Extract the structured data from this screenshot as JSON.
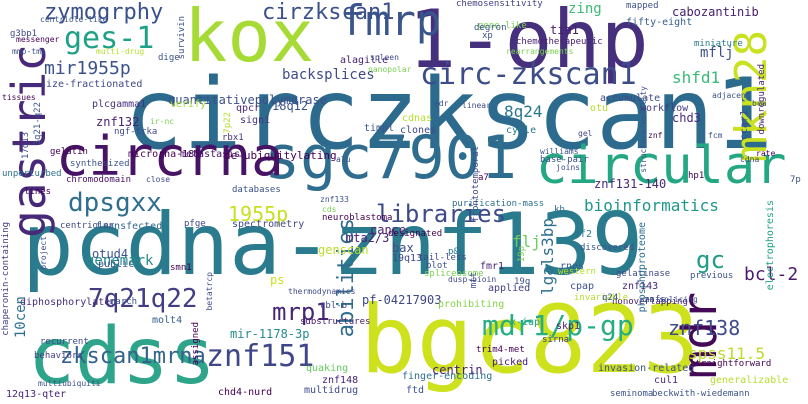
{
  "words": [
    {
      "t": "pcdna-znf139",
      "c": "#2a7b8e"
    },
    {
      "t": "circzkscan1",
      "c": "#2c6b8e"
    },
    {
      "t": "bgc823",
      "c": "#cde11d"
    },
    {
      "t": "kox",
      "c": "#a6db35"
    },
    {
      "t": "1-ohp",
      "c": "#46307d"
    },
    {
      "t": "cdss",
      "c": "#2ea48a"
    },
    {
      "t": "sgc7901",
      "c": "#2f6d8e"
    },
    {
      "t": "circular",
      "c": "#24a883"
    },
    {
      "t": "circrna",
      "c": "#471365"
    },
    {
      "t": "gastric",
      "c": "#482878"
    },
    {
      "t": "mkn28",
      "c": "#cae11f"
    },
    {
      "t": "fmrp",
      "c": "#3a548c"
    },
    {
      "t": "mdr",
      "c": "#440a57"
    },
    {
      "t": "circ-zkscan1",
      "c": "#3d4d8a"
    },
    {
      "t": "libraries",
      "c": "#3e4a89"
    },
    {
      "t": "dpsgxx",
      "c": "#2e6e8e"
    },
    {
      "t": "zymogrphy",
      "c": "#3b518b"
    },
    {
      "t": "cirzkscan1",
      "c": "#3b518b"
    },
    {
      "t": "ges-1",
      "c": "#1fa187"
    },
    {
      "t": "zkscan1mrna",
      "c": "#33628d"
    },
    {
      "t": "znf151",
      "c": "#3f4788"
    },
    {
      "t": "mdr1/p-gp",
      "c": "#26ad81"
    },
    {
      "t": "7q21q22",
      "c": "#433d84"
    },
    {
      "t": "mrp1",
      "c": "#482576"
    },
    {
      "t": "abilities",
      "c": "#2f6c8e"
    },
    {
      "t": "1955p",
      "c": "#c8e020"
    },
    {
      "t": "mir1955p",
      "c": "#3b528b"
    },
    {
      "t": "backsplices",
      "c": "#3e4b8a"
    },
    {
      "t": "quantitativepolymerase",
      "c": "#3c4f8a"
    },
    {
      "t": "bioinformatics",
      "c": "#1f988b"
    },
    {
      "t": "znf131-140",
      "c": "#482878"
    },
    {
      "t": "znf138",
      "c": "#3e4c8a"
    },
    {
      "t": "spss11.5",
      "c": "#bade28"
    },
    {
      "t": "bcl-2",
      "c": "#481a6c"
    },
    {
      "t": "gc",
      "c": "#1e9c89"
    },
    {
      "t": "mflj",
      "c": "#3b528b"
    },
    {
      "t": "shfd1",
      "c": "#3aba76"
    },
    {
      "t": "8q24",
      "c": "#2a788e"
    },
    {
      "t": "chd3",
      "c": "#472d7b"
    },
    {
      "t": "lgals3bp",
      "c": "#2d708e"
    },
    {
      "t": "flj",
      "c": "#6ccd5a"
    },
    {
      "t": "genemark",
      "c": "#228c8d"
    },
    {
      "t": "10cen",
      "c": "#2c718e"
    },
    {
      "t": "znf132",
      "c": "#482374"
    },
    {
      "t": "18q12",
      "c": "#3a538b"
    },
    {
      "t": "mta2/3",
      "c": "#482475"
    },
    {
      "t": "otud4",
      "c": "#3a548c"
    },
    {
      "t": "genscan",
      "c": "#bade28"
    },
    {
      "t": "bax",
      "c": "#3d4e8a"
    },
    {
      "t": "ps",
      "c": "#cde11d"
    },
    {
      "t": "mir-1178-3p",
      "c": "#238a8d"
    },
    {
      "t": "pf-04217903",
      "c": "#3f4788"
    },
    {
      "t": "centrin",
      "c": "#482071"
    },
    {
      "t": "cabozantinib",
      "c": "#482071"
    },
    {
      "t": "zing",
      "c": "#3aba76"
    },
    {
      "t": "tia1",
      "c": "#481c6e"
    },
    {
      "t": "cance",
      "c": "#482173"
    },
    {
      "t": "gene-like",
      "c": "#7ad151"
    },
    {
      "t": "de-ubiquitylating",
      "c": "#440154"
    },
    {
      "t": "alagille",
      "c": "#482173"
    },
    {
      "t": "chemosensitivity",
      "c": "#433e85"
    },
    {
      "t": "fifty-eight",
      "c": "#355f8d"
    },
    {
      "t": "workflow",
      "c": "#443983"
    },
    {
      "t": "accumulate",
      "c": "#3e4989"
    },
    {
      "t": "diphosphorylated",
      "c": "#472f7d"
    },
    {
      "t": "prohibiting",
      "c": "#84d44b"
    },
    {
      "t": "finger-encoding",
      "c": "#2e6f8e"
    },
    {
      "t": "picked",
      "c": "#481769"
    },
    {
      "t": "applied",
      "c": "#433e85"
    },
    {
      "t": "quaking",
      "c": "#65cb5e"
    },
    {
      "t": "invasion-related",
      "c": "#3b528b"
    },
    {
      "t": "generalizable",
      "c": "#b5de2b"
    },
    {
      "t": "multidrug",
      "c": "#3e4a89"
    },
    {
      "t": "rnas",
      "c": "#355f8d"
    },
    {
      "t": "sf2",
      "c": "#2a788e"
    },
    {
      "t": "fmr1",
      "c": "#482576"
    },
    {
      "t": "19q13",
      "c": "#3e4989"
    },
    {
      "t": "znf148",
      "c": "#482374"
    },
    {
      "t": "molt4",
      "c": "#355f8d"
    },
    {
      "t": "public",
      "c": "#3b528b"
    },
    {
      "t": "microrna-185",
      "c": "#440154"
    },
    {
      "t": "metastasis",
      "c": "#471164"
    },
    {
      "t": "transfected",
      "c": "#31688e"
    },
    {
      "t": "spectrometry",
      "c": "#3e4a89"
    },
    {
      "t": "size-fractionated",
      "c": "#3e4989"
    },
    {
      "t": "plcgamma1",
      "c": "#46317e"
    },
    {
      "t": "12q13-qter",
      "c": "#482576"
    },
    {
      "t": "chd4-nurd",
      "c": "#440154"
    },
    {
      "t": "trim4-met",
      "c": "#440154"
    },
    {
      "t": "neuroblastoma",
      "c": "#440154"
    },
    {
      "t": "purification-mass",
      "c": "#2d708e"
    },
    {
      "t": "straightforward",
      "c": "#440154"
    },
    {
      "t": "nonoverlapping",
      "c": "#482173"
    },
    {
      "t": "chaperonin-containing",
      "c": "#433e85"
    },
    {
      "t": "substructures",
      "c": "#481a6c"
    },
    {
      "t": "centriolar",
      "c": "#3e4989"
    },
    {
      "t": "chromodomain",
      "c": "#471063"
    },
    {
      "t": "survivin",
      "c": "#3b528b"
    },
    {
      "t": "cdnas",
      "c": "#b5de2b"
    },
    {
      "t": "clones",
      "c": "#3e4989"
    },
    {
      "t": "timpl",
      "c": "#3a548c"
    },
    {
      "t": "otu",
      "c": "#b5de2b"
    },
    {
      "t": "cycle",
      "c": "#2a788e"
    },
    {
      "t": "ccar1",
      "c": "#3e4a89"
    },
    {
      "t": "verify",
      "c": "#a0da39"
    },
    {
      "t": "signi",
      "c": "#46327e"
    },
    {
      "t": "qpcr",
      "c": "#482475"
    },
    {
      "t": "rbx1",
      "c": "#46327e"
    },
    {
      "t": "7p22",
      "c": "#b5de2b"
    },
    {
      "t": "3q21-q22",
      "c": "#3b528b"
    },
    {
      "t": "mapped",
      "c": "#3b528b"
    },
    {
      "t": "xp",
      "c": "#3b528b"
    },
    {
      "t": "chemotherapeutic",
      "c": "#482071"
    },
    {
      "t": "miniature",
      "c": "#2a788e"
    },
    {
      "t": "downregulated",
      "c": "#482878"
    },
    {
      "t": "cpap",
      "c": "#3b528b"
    },
    {
      "t": "invariable",
      "c": "#b5de2b"
    },
    {
      "t": "skp1",
      "c": "#481f70"
    },
    {
      "t": "x-iap",
      "c": "#1fa187"
    },
    {
      "t": "sirna",
      "c": "#433e85"
    },
    {
      "t": "cul1",
      "c": "#482878"
    },
    {
      "t": "ftd",
      "c": "#3b528b"
    },
    {
      "t": "znf143",
      "c": "#482576"
    },
    {
      "t": "znfs",
      "c": "#3e4a89"
    },
    {
      "t": "q24",
      "c": "#3b528b"
    },
    {
      "t": "p&p",
      "c": "#2c718e"
    },
    {
      "t": "tail-less",
      "c": "#3e4989"
    },
    {
      "t": "designated",
      "c": "#440154"
    },
    {
      "t": "19p",
      "c": "#7ad151"
    },
    {
      "t": "19q",
      "c": "#3b528b"
    },
    {
      "t": "discovered",
      "c": "#3b528b"
    },
    {
      "t": "gelatinase",
      "c": "#3e4a89"
    },
    {
      "t": "previous",
      "c": "#3b528b"
    },
    {
      "t": "phosphoproteome",
      "c": "#2c718e"
    },
    {
      "t": "electrophoresis",
      "c": "#1fa187"
    },
    {
      "t": "recurrent",
      "c": "#3e4a89"
    },
    {
      "t": "behaviors",
      "c": "#433e85"
    },
    {
      "t": "assigned",
      "c": "#440154"
    },
    {
      "t": "seminoma",
      "c": "#3b528b"
    },
    {
      "t": "beckwith-wiedemann",
      "c": "#3b528b"
    },
    {
      "t": "databases",
      "c": "#3b528b"
    },
    {
      "t": "pfge",
      "c": "#3e4989"
    },
    {
      "t": "smn1",
      "c": "#440154"
    },
    {
      "t": "march",
      "c": "#3b528b"
    },
    {
      "t": "lines",
      "c": "#440154"
    },
    {
      "t": "unperturbed",
      "c": "#2c718e"
    },
    {
      "t": "thermodynamics",
      "c": "#3e4a89"
    },
    {
      "t": "cbl-b",
      "c": "#3e4a89"
    },
    {
      "t": "spliceosome",
      "c": "#7ad151"
    },
    {
      "t": "blot",
      "c": "#3b528b"
    },
    {
      "t": "mtt",
      "c": "#3e4989"
    },
    {
      "t": "western",
      "c": "#b5de2b"
    },
    {
      "t": "rna-splicing",
      "c": "#3b528b"
    },
    {
      "t": "frontotemporal",
      "c": "#3e4a89"
    },
    {
      "t": "synthesized",
      "c": "#3b528b"
    },
    {
      "t": "gelatin",
      "c": "#440154"
    },
    {
      "t": "17q13",
      "c": "#3e4989"
    },
    {
      "t": "ngf-trka",
      "c": "#3e4a89"
    },
    {
      "t": "base-pair",
      "c": "#3b528b"
    },
    {
      "t": "kb",
      "c": "#2c718e"
    },
    {
      "t": "a7",
      "c": "#440154"
    },
    {
      "t": "hp1",
      "c": "#440154"
    },
    {
      "t": "7p",
      "c": "#3b528b"
    },
    {
      "t": "mmp-tmp",
      "c": "#3b528b"
    },
    {
      "t": "messenger",
      "c": "#440154"
    },
    {
      "t": "g3bp1",
      "c": "#3e4989"
    },
    {
      "t": "centriole-like",
      "c": "#3b528b"
    },
    {
      "t": "multi-drug",
      "c": "#b5de2b"
    },
    {
      "t": "dige",
      "c": "#3b528b"
    },
    {
      "t": "degron",
      "c": "#3b528b"
    },
    {
      "t": "spleen",
      "c": "#3e4a89"
    },
    {
      "t": "rearrangements",
      "c": "#7ad151"
    },
    {
      "t": "tissues",
      "c": "#440154"
    },
    {
      "t": "adjacent",
      "c": "#3b528b"
    },
    {
      "t": "bca",
      "c": "#3b528b"
    },
    {
      "t": "williams",
      "c": "#3b528b"
    },
    {
      "t": "joins",
      "c": "#3e4989"
    },
    {
      "t": "znf133",
      "c": "#3b528b"
    },
    {
      "t": "structure/motility",
      "c": "#3b528b"
    },
    {
      "t": "cdna",
      "c": "#3e4a89"
    },
    {
      "t": "rate",
      "c": "#440154"
    },
    {
      "t": "fcm",
      "c": "#3b528b"
    },
    {
      "t": "linear",
      "c": "#3e4a89"
    },
    {
      "t": "adr",
      "c": "#3b528b"
    },
    {
      "t": "close",
      "c": "#3e4989"
    },
    {
      "t": "cds",
      "c": "#7ad151"
    },
    {
      "t": "nanopolar",
      "c": "#7ad151"
    },
    {
      "t": "alu",
      "c": "#3b528b"
    },
    {
      "t": "gel",
      "c": "#3e4a89"
    },
    {
      "t": "znf",
      "c": "#440154"
    },
    {
      "t": "betatrcp",
      "c": "#3e4989"
    },
    {
      "t": "multiubiquiti",
      "c": "#3b528b"
    },
    {
      "t": "dusp-bioin",
      "c": "#3e4a89"
    },
    {
      "t": "ir-nc",
      "c": "#7ad151"
    },
    {
      "t": "project",
      "c": "#3e4989"
    }
  ]
}
